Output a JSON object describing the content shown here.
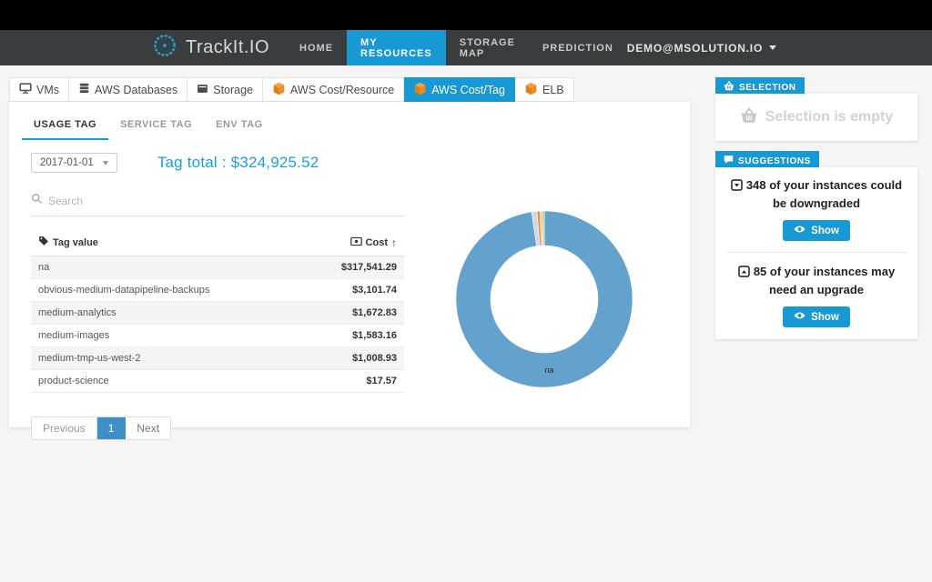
{
  "nav": {
    "brand": "TrackIt.IO",
    "links": [
      {
        "label": "HOME",
        "active": false
      },
      {
        "label": "MY RESOURCES",
        "active": true
      },
      {
        "label": "STORAGE MAP",
        "active": false
      },
      {
        "label": "PREDICTION",
        "active": false
      }
    ],
    "user": {
      "label": "DEMO@MSOLUTION.IO"
    }
  },
  "resource_tabs": [
    {
      "label": "VMs",
      "icon": "monitor-icon",
      "active": false
    },
    {
      "label": "AWS Databases",
      "icon": "database-icon",
      "active": false
    },
    {
      "label": "Storage",
      "icon": "drive-icon",
      "active": false
    },
    {
      "label": "AWS Cost/Resource",
      "icon": "aws-cube-icon",
      "active": false
    },
    {
      "label": "AWS Cost/Tag",
      "icon": "aws-cube-icon",
      "active": true
    },
    {
      "label": "ELB",
      "icon": "aws-cube-icon",
      "active": false
    }
  ],
  "tag_tabs": [
    {
      "label": "USAGE TAG",
      "active": true
    },
    {
      "label": "SERVICE TAG",
      "active": false
    },
    {
      "label": "ENV TAG",
      "active": false
    }
  ],
  "date_select": {
    "value": "2017-01-01"
  },
  "tag_total": "Tag total : $324,925.52",
  "search": {
    "placeholder": "Search"
  },
  "table": {
    "columns": {
      "tag": "Tag value",
      "cost": "Cost"
    },
    "sort_indicator": "↑",
    "rows": [
      {
        "tag": "na",
        "cost": "$317,541.29"
      },
      {
        "tag": "obvious-medium-datapipeline-backups",
        "cost": "$3,101.74"
      },
      {
        "tag": "medium-analytics",
        "cost": "$1,672.83"
      },
      {
        "tag": "medium-images",
        "cost": "$1,583.16"
      },
      {
        "tag": "medium-tmp-us-west-2",
        "cost": "$1,008.93"
      },
      {
        "tag": "product-science",
        "cost": "$17.57"
      }
    ]
  },
  "pagination": {
    "previous": "Previous",
    "page": "1",
    "next": "Next"
  },
  "selection_panel": {
    "header": "SELECTION",
    "empty_text": "Selection is empty"
  },
  "suggestions_panel": {
    "header": "SUGGESTIONS",
    "items": [
      {
        "text": "348 of your instances could be downgraded",
        "icon": "downgrade-icon",
        "button": "Show"
      },
      {
        "text": "85 of your instances may need an upgrade",
        "icon": "upgrade-icon",
        "button": "Show"
      }
    ]
  },
  "chart_data": {
    "type": "pie",
    "subtype": "donut",
    "labels": [
      "na",
      "obvious-medium-datapipeline-backups",
      "medium-analytics",
      "medium-images",
      "medium-tmp-us-west-2",
      "product-science"
    ],
    "values": [
      317541.29,
      3101.74,
      1672.83,
      1583.16,
      1008.93,
      17.57
    ],
    "total": 324925.52,
    "colors": [
      "#63a2cd",
      "#cdd9eb",
      "#ef8d22",
      "#f8caa0",
      "#74c476",
      "#c7e9c0"
    ],
    "center_label": "na",
    "start_angle_deg": 0,
    "direction": "clockwise",
    "legend": "none"
  },
  "colors": {
    "accent_blue": "#1899d3",
    "nav_bg": "#3a3d3f",
    "aws_orange": "#f08a24",
    "page_bg": "#f5f5f6",
    "donut_main": "#63a2cd"
  }
}
